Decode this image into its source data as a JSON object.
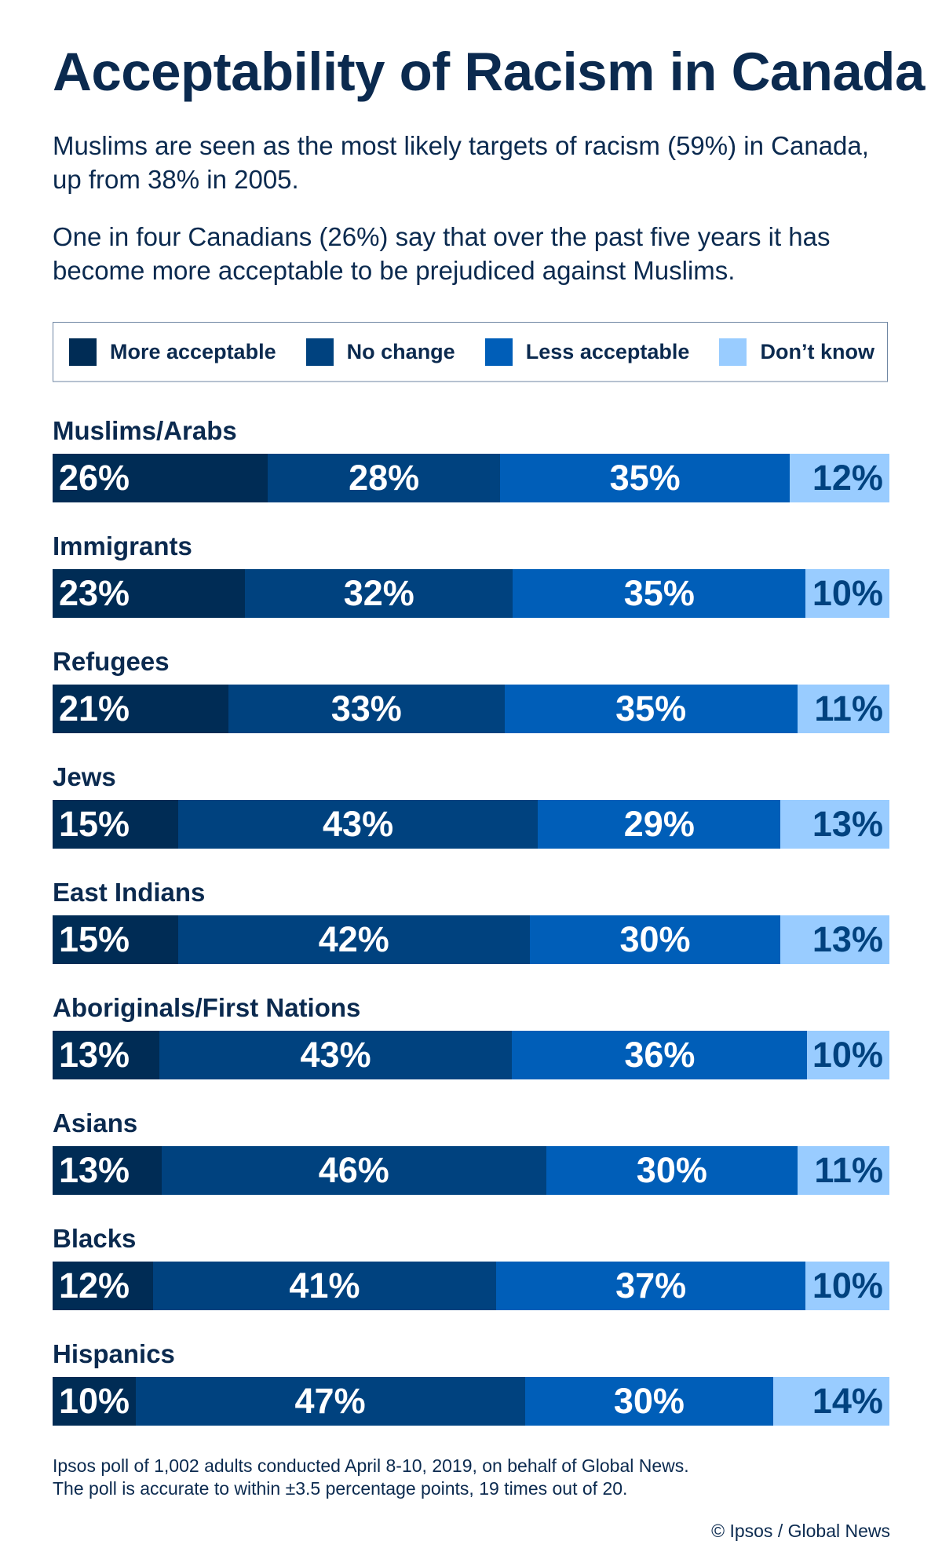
{
  "header": {
    "title": "Acceptability of Racism in Canada",
    "paragraph1": "Muslims are seen as the most likely targets of racism (59%) in Canada, up from 38% in 2005.",
    "paragraph2": "One in four Canadians (26%) say that over the past five years it has become more acceptable to be prejudiced against Muslims."
  },
  "chart_data": {
    "type": "bar",
    "orientation": "horizontal-stacked",
    "categories": [
      "Muslims/Arabs",
      "Immigrants",
      "Refugees",
      "Jews",
      "East Indians",
      "Aboriginals/First Nations",
      "Asians",
      "Blacks",
      "Hispanics"
    ],
    "series": [
      {
        "name": "More acceptable",
        "color": "#002c55",
        "values": [
          26,
          23,
          21,
          15,
          15,
          13,
          13,
          12,
          10
        ]
      },
      {
        "name": "No change",
        "color": "#00427f",
        "values": [
          28,
          32,
          33,
          43,
          42,
          43,
          46,
          41,
          47
        ]
      },
      {
        "name": "Less acceptable",
        "color": "#005eb8",
        "values": [
          35,
          35,
          35,
          29,
          30,
          36,
          30,
          37,
          30
        ]
      },
      {
        "name": "Don’t know",
        "color": "#99ccff",
        "values": [
          12,
          10,
          11,
          13,
          13,
          10,
          11,
          10,
          14
        ]
      }
    ],
    "unit": "%",
    "legend": "top",
    "grid": false
  },
  "footer": {
    "note_line1": "Ipsos poll of 1,002 adults conducted April 8-10, 2019, on behalf of Global News.",
    "note_line2": "The poll is accurate to within ±3.5 percentage points, 19 times out of 20.",
    "credit": "© Ipsos / Global News"
  }
}
